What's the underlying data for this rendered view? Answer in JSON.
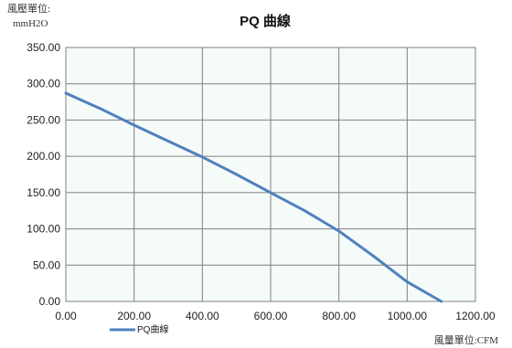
{
  "chart_data": {
    "type": "line",
    "title": "PQ 曲線",
    "ylabel_line1": "風壓單位:",
    "ylabel_line2": "mmH2O",
    "xlabel": "風量單位:CFM",
    "xlim": [
      0,
      1200
    ],
    "ylim": [
      0,
      350
    ],
    "xticks": [
      "0.00",
      "200.00",
      "400.00",
      "600.00",
      "800.00",
      "1000.00",
      "1200.00"
    ],
    "yticks": [
      "350.00",
      "300.00",
      "250.00",
      "200.00",
      "150.00",
      "100.00",
      "50.00",
      "0.00"
    ],
    "grid": true,
    "legend_placement": "bottom-left",
    "series": [
      {
        "name": "PQ曲線",
        "color": "#4f81bd",
        "x": [
          0,
          100,
          200,
          300,
          400,
          500,
          600,
          700,
          800,
          900,
          1000,
          1100
        ],
        "y": [
          287,
          266,
          243,
          221,
          199,
          175,
          150,
          125,
          97,
          63,
          27,
          0
        ]
      }
    ]
  },
  "colors": {
    "plot_background": "#f5fbf9",
    "grid": "#808080"
  }
}
